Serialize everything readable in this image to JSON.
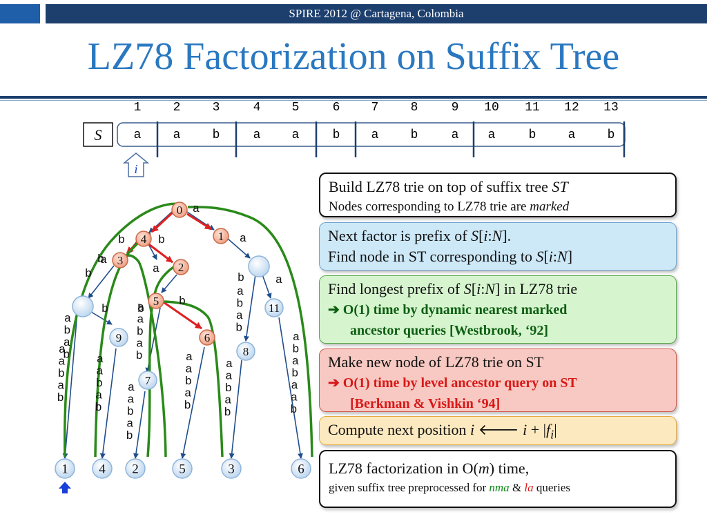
{
  "header": {
    "conference": "SPIRE 2012 @ Cartagena, Colombia"
  },
  "title": "LZ78 Factorization on Suffix Tree",
  "string_row": {
    "label": "S",
    "positions": [
      "1",
      "2",
      "3",
      "4",
      "5",
      "6",
      "7",
      "8",
      "9",
      "10",
      "11",
      "12",
      "13"
    ],
    "chars": [
      "a",
      "a",
      "b",
      "a",
      "a",
      "b",
      "a",
      "b",
      "a",
      "a",
      "b",
      "a",
      "b"
    ],
    "pointer_label": "i"
  },
  "tree": {
    "trie_nodes": [
      "0",
      "1",
      "4",
      "3",
      "2",
      "5",
      "6"
    ],
    "internal_nodes": [
      "11",
      "9",
      "8",
      "7"
    ],
    "leaves": [
      "1",
      "4",
      "2",
      "5",
      "3",
      "6"
    ],
    "edge_labels": [
      "a",
      "b",
      "b",
      "a",
      "b",
      "a",
      "b",
      "b",
      "a",
      "b",
      "a",
      "b",
      "b",
      "a"
    ],
    "path_labels": [
      "abab",
      "aabab",
      "aabab",
      "aabab",
      "abab",
      "ababaab",
      "aabab",
      "aabab",
      "aabab"
    ]
  },
  "boxes": {
    "b1": {
      "line1_pre": "Build LZ78 trie on top of suffix tree ",
      "line1_em": "ST",
      "line2_pre": "Nodes corresponding to LZ78 trie are ",
      "line2_em": "marked"
    },
    "b2": {
      "line1_pre": "Next factor is prefix of ",
      "line1_s": "S",
      "line1_b1": "[",
      "line1_i": "i",
      "line1_c": ":",
      "line1_n": "N",
      "line1_b2": "].",
      "line2_pre": "Find node in ST corresponding to ",
      "line2_s": "S",
      "line2_b1": "[",
      "line2_i": "i",
      "line2_c": ":",
      "line2_n": "N",
      "line2_b2": "]"
    },
    "b3": {
      "line1_pre": "Find longest prefix of ",
      "line1_s": "S",
      "line1_b1": "[",
      "line1_i": "i",
      "line1_c": ":",
      "line1_n": "N",
      "line1_post": "] in LZ78 trie",
      "arrow": "➔",
      "line2": " O(1) time by dynamic nearest marked",
      "line3": "ancestor queries [Westbrook, ‘92]"
    },
    "b4": {
      "line1": "Make new node of LZ78 trie on ST",
      "arrow": "➔",
      "line2": " O(1) time by level ancestor query on ST",
      "line3": "[Berkman & Vishkin ‘94]"
    },
    "b5": {
      "pre": "Compute next position ",
      "i1": "i",
      "arrow": " 🡐 ",
      "i2": "i",
      "plus": " + |",
      "f": "f",
      "sub": "i",
      "end": "|"
    },
    "b6": {
      "line1_pre": "LZ78 factorization in O(",
      "line1_m": "m",
      "line1_post": ") time,",
      "line2_pre": "given suffix tree preprocessed for ",
      "nma": "nma",
      "amp": " & ",
      "la": "la",
      "line2_post": " queries"
    }
  },
  "colors": {
    "title": "#2a78c0",
    "bar": "#1d3f6e",
    "green_arc": "#2a8a1a",
    "red_edge": "#e02020",
    "blue_edge": "#1f4e8c",
    "node_pink": "#f4b49c",
    "node_blue": "#cfe3f4"
  }
}
